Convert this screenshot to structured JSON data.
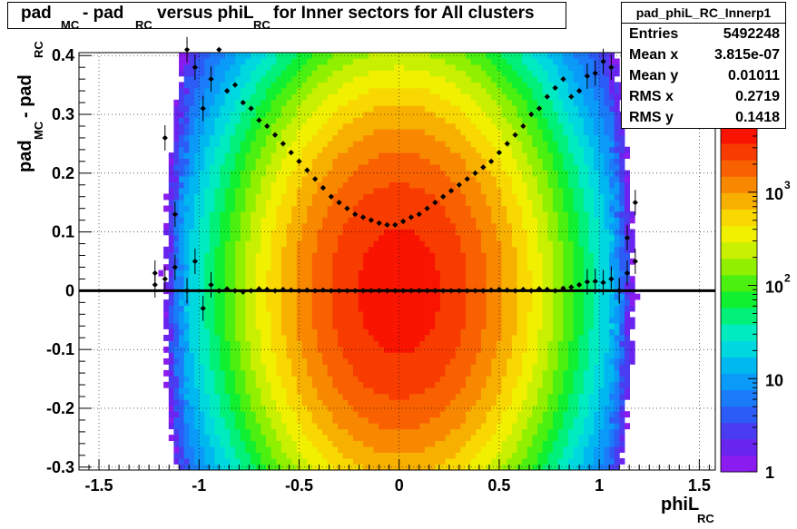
{
  "chart_data": {
    "type": "heatmap",
    "title": "pad_MC - pad_RC versus phiL_RC for Inner sectors for All clusters",
    "title_parts": {
      "p1": "pad",
      "s1": "MC",
      "p2": " - pad",
      "s2": "RC",
      "p3": " versus phiL",
      "s3": "RC",
      "p4": " for Inner sectors for All clusters"
    },
    "xlabel": "phiL_RC",
    "xlabel_parts": {
      "main": "phiL",
      "sub": "RC"
    },
    "ylabel": "pad_MC - pad_RC",
    "ylabel_parts": {
      "p1": "pad",
      "s1": "MC",
      "p2": " - pad",
      "s2": "RC"
    },
    "xlim": [
      -1.6,
      1.58
    ],
    "ylim": [
      -0.305,
      0.405
    ],
    "xticks": [
      -1.5,
      -1,
      -0.5,
      0,
      0.5,
      1,
      1.5
    ],
    "xtick_labels": [
      "-1.5",
      "-1",
      "-0.5",
      "0",
      "0.5",
      "1",
      "1.5"
    ],
    "yticks": [
      -0.3,
      -0.2,
      -0.1,
      0,
      0.1,
      0.2,
      0.3,
      0.4
    ],
    "ytick_labels": [
      "-0.3",
      "-0.2",
      "-0.1",
      "0",
      "0.1",
      "0.2",
      "0.3",
      "0.4"
    ],
    "grid": true,
    "log_z": true,
    "colorbar": {
      "range": [
        1,
        5000
      ],
      "tick_labels": [
        {
          "mantissa": "1",
          "exp": ""
        },
        {
          "mantissa": "10",
          "exp": ""
        },
        {
          "mantissa": "10",
          "exp": "2"
        },
        {
          "mantissa": "10",
          "exp": "3"
        }
      ],
      "tick_values": [
        1,
        10,
        100,
        1000
      ]
    },
    "stats": {
      "name": "pad_phiL_RC_Innerp1",
      "rows": [
        {
          "label": "Entries",
          "value": "5492248"
        },
        {
          "label": "Mean x",
          "value": "3.815e-07"
        },
        {
          "label": "Mean y",
          "value": "0.01011"
        },
        {
          "label": "RMS x",
          "value": "0.2719"
        },
        {
          "label": "RMS y",
          "value": "0.1418"
        }
      ]
    },
    "profile_mean": {
      "x": [
        -1.22,
        -1.17,
        -1.12,
        -1.06,
        -1.02,
        -0.98,
        -0.94,
        -0.9,
        -0.86,
        -0.82,
        -0.78,
        -0.74,
        -0.7,
        -0.66,
        -0.62,
        -0.58,
        -0.54,
        -0.5,
        -0.46,
        -0.42,
        -0.38,
        -0.34,
        -0.3,
        -0.26,
        -0.22,
        -0.18,
        -0.14,
        -0.1,
        -0.06,
        -0.02,
        0.02,
        0.06,
        0.1,
        0.14,
        0.18,
        0.22,
        0.26,
        0.3,
        0.34,
        0.38,
        0.42,
        0.46,
        0.5,
        0.54,
        0.58,
        0.62,
        0.66,
        0.7,
        0.74,
        0.78,
        0.82,
        0.86,
        0.9,
        0.94,
        0.98,
        1.02,
        1.06,
        1.1,
        1.14,
        1.18
      ],
      "y": [
        0.01,
        0.26,
        0.13,
        0.41,
        0.38,
        0.31,
        0.36,
        0.41,
        0.34,
        0.35,
        0.32,
        0.31,
        0.29,
        0.28,
        0.265,
        0.25,
        0.235,
        0.22,
        0.205,
        0.19,
        0.175,
        0.16,
        0.15,
        0.14,
        0.13,
        0.125,
        0.12,
        0.115,
        0.112,
        0.112,
        0.118,
        0.125,
        0.13,
        0.14,
        0.15,
        0.16,
        0.17,
        0.18,
        0.19,
        0.2,
        0.21,
        0.22,
        0.235,
        0.25,
        0.265,
        0.28,
        0.3,
        0.31,
        0.33,
        0.345,
        0.36,
        0.33,
        0.34,
        0.365,
        0.37,
        0.39,
        0.38,
        0.0,
        0.09,
        0.15
      ]
    },
    "profile_center": {
      "x": [
        -1.22,
        -1.17,
        -1.12,
        -1.06,
        -1.02,
        -0.98,
        -0.94,
        -0.9,
        -0.86,
        -0.82,
        -0.78,
        -0.74,
        -0.7,
        -0.66,
        -0.62,
        -0.58,
        -0.54,
        -0.5,
        -0.46,
        -0.42,
        -0.38,
        -0.34,
        -0.3,
        -0.26,
        -0.22,
        -0.18,
        -0.14,
        -0.1,
        -0.06,
        -0.02,
        0.02,
        0.06,
        0.1,
        0.14,
        0.18,
        0.22,
        0.26,
        0.3,
        0.34,
        0.38,
        0.42,
        0.46,
        0.5,
        0.54,
        0.58,
        0.62,
        0.66,
        0.7,
        0.74,
        0.78,
        0.82,
        0.86,
        0.9,
        0.94,
        0.98,
        1.02,
        1.06,
        1.1,
        1.14,
        1.18
      ],
      "y": [
        0.03,
        0.02,
        0.04,
        0.0,
        0.05,
        -0.03,
        0.01,
        0.0,
        0.003,
        0.0,
        -0.002,
        0.0,
        0.003,
        0.002,
        0.0,
        0.002,
        0.001,
        0.0,
        0.001,
        0.0,
        0.001,
        0.0,
        0.0,
        0.0,
        0.0,
        0.0,
        0.0,
        0.0,
        0.0,
        0.0,
        0.0,
        0.0,
        0.0,
        0.0,
        0.0,
        0.0,
        0.0,
        0.0,
        0.0,
        0.0,
        0.0,
        0.001,
        0.002,
        0.001,
        0.0,
        0.002,
        0.0,
        0.003,
        0.002,
        0.0,
        0.004,
        0.006,
        0.01,
        0.015,
        0.016,
        0.014,
        0.02,
        0.0,
        0.03,
        0.05
      ]
    },
    "zero_line_y": 0
  }
}
